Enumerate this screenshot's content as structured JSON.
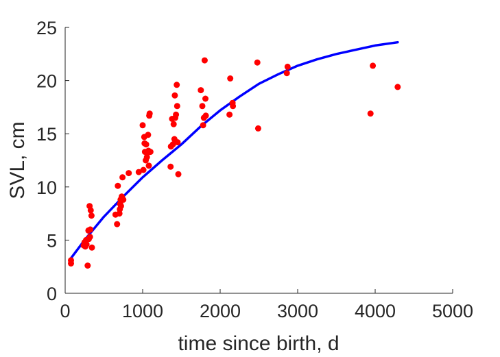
{
  "chart_data": {
    "type": "scatter",
    "title": "",
    "xlabel": "time since birth, d",
    "ylabel": "SVL, cm",
    "xlim": [
      0,
      5000
    ],
    "ylim": [
      0,
      25
    ],
    "xticks": [
      "0",
      "1000",
      "2000",
      "3000",
      "4000",
      "5000"
    ],
    "yticks": [
      "0",
      "5",
      "10",
      "15",
      "20",
      "25"
    ],
    "grid": false,
    "legend": "none",
    "series": [
      {
        "kind": "scatter",
        "color": "#ff0000",
        "points": [
          [
            75,
            3.1
          ],
          [
            75,
            2.8
          ],
          [
            240,
            4.5
          ],
          [
            250,
            4.8
          ],
          [
            260,
            4.4
          ],
          [
            270,
            5.0
          ],
          [
            275,
            4.6
          ],
          [
            290,
            2.6
          ],
          [
            300,
            5.9
          ],
          [
            305,
            5.1
          ],
          [
            315,
            8.2
          ],
          [
            320,
            5.3
          ],
          [
            325,
            6.0
          ],
          [
            330,
            7.8
          ],
          [
            340,
            7.3
          ],
          [
            345,
            4.3
          ],
          [
            650,
            7.4
          ],
          [
            670,
            6.5
          ],
          [
            680,
            10.1
          ],
          [
            700,
            7.5
          ],
          [
            705,
            7.9
          ],
          [
            710,
            8.4
          ],
          [
            715,
            8.8
          ],
          [
            720,
            8.2
          ],
          [
            730,
            9.1
          ],
          [
            740,
            10.9
          ],
          [
            750,
            8.8
          ],
          [
            820,
            11.3
          ],
          [
            950,
            11.4
          ],
          [
            1000,
            15.8
          ],
          [
            1010,
            11.6
          ],
          [
            1020,
            14.7
          ],
          [
            1025,
            14.1
          ],
          [
            1030,
            13.3
          ],
          [
            1040,
            12.5
          ],
          [
            1045,
            14.0
          ],
          [
            1055,
            12.8
          ],
          [
            1060,
            13.2
          ],
          [
            1070,
            14.9
          ],
          [
            1075,
            13.4
          ],
          [
            1080,
            12.0
          ],
          [
            1085,
            16.7
          ],
          [
            1090,
            16.9
          ],
          [
            1100,
            13.3
          ],
          [
            1360,
            11.9
          ],
          [
            1365,
            13.8
          ],
          [
            1380,
            16.4
          ],
          [
            1390,
            14.0
          ],
          [
            1400,
            15.9
          ],
          [
            1410,
            14.5
          ],
          [
            1415,
            18.6
          ],
          [
            1420,
            16.5
          ],
          [
            1430,
            16.8
          ],
          [
            1440,
            19.6
          ],
          [
            1445,
            17.6
          ],
          [
            1450,
            14.2
          ],
          [
            1460,
            11.2
          ],
          [
            1750,
            19.1
          ],
          [
            1770,
            17.6
          ],
          [
            1780,
            15.8
          ],
          [
            1790,
            16.5
          ],
          [
            1800,
            21.9
          ],
          [
            1810,
            18.3
          ],
          [
            1815,
            16.7
          ],
          [
            2120,
            16.8
          ],
          [
            2130,
            20.2
          ],
          [
            2160,
            17.9
          ],
          [
            2165,
            17.6
          ],
          [
            2480,
            21.7
          ],
          [
            2490,
            15.5
          ],
          [
            2860,
            20.7
          ],
          [
            2870,
            21.3
          ],
          [
            3940,
            16.9
          ],
          [
            3970,
            21.4
          ],
          [
            4290,
            19.4
          ]
        ]
      },
      {
        "kind": "line",
        "color": "#0000ff",
        "points": [
          [
            75,
            3.3
          ],
          [
            250,
            5.0
          ],
          [
            500,
            7.2
          ],
          [
            750,
            9.1
          ],
          [
            1000,
            10.9
          ],
          [
            1250,
            12.5
          ],
          [
            1500,
            14.0
          ],
          [
            1750,
            15.7
          ],
          [
            2000,
            17.2
          ],
          [
            2250,
            18.5
          ],
          [
            2500,
            19.7
          ],
          [
            2750,
            20.6
          ],
          [
            3000,
            21.4
          ],
          [
            3250,
            22.0
          ],
          [
            3500,
            22.5
          ],
          [
            3750,
            22.9
          ],
          [
            4000,
            23.3
          ],
          [
            4290,
            23.6
          ]
        ]
      }
    ]
  },
  "colors": {
    "axis": "#262626",
    "data_points": "#ff0000",
    "fit_curve": "#0000ff",
    "background": "#ffffff"
  }
}
